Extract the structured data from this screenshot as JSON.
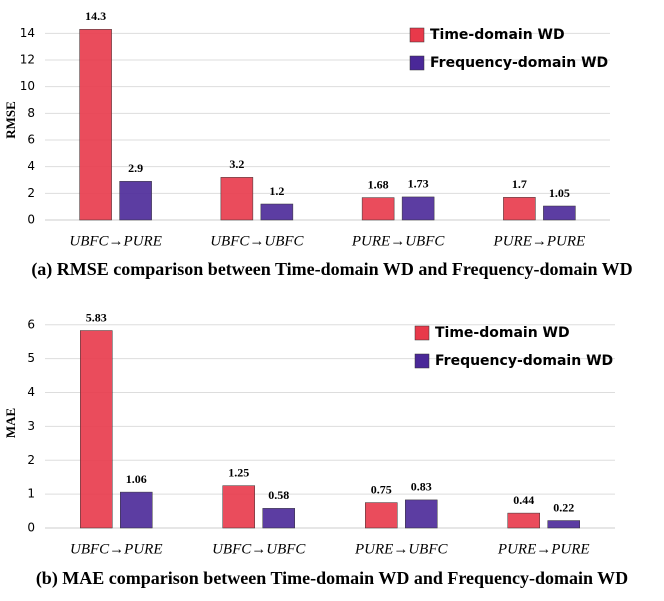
{
  "chart_data": [
    {
      "type": "bar",
      "title": "(a) RMSE comparison between Time-domain WD and Frequency-domain WD",
      "ylabel": "RMSE",
      "categories": [
        "UBFC→PURE",
        "UBFC→UBFC",
        "PURE→UBFC",
        "PURE→PURE"
      ],
      "series": [
        {
          "name": "Time-domain WD",
          "color": "#e8394a",
          "values": [
            14.3,
            3.2,
            1.68,
            1.7
          ]
        },
        {
          "name": "Frequency-domain WD",
          "color": "#4a2898",
          "values": [
            2.9,
            1.2,
            1.73,
            1.05
          ]
        }
      ],
      "ylim": [
        0,
        15
      ],
      "yticks": [
        0,
        2,
        4,
        6,
        8,
        10,
        12,
        14
      ],
      "grid": true,
      "legend": "upper right"
    },
    {
      "type": "bar",
      "title": "(b) MAE comparison between Time-domain WD and Frequency-domain WD",
      "ylabel": "MAE",
      "categories": [
        "UBFC→PURE",
        "UBFC→UBFC",
        "PURE→UBFC",
        "PURE→PURE"
      ],
      "series": [
        {
          "name": "Time-domain WD",
          "color": "#e8394a",
          "values": [
            5.83,
            1.25,
            0.75,
            0.44
          ]
        },
        {
          "name": "Frequency-domain WD",
          "color": "#4a2898",
          "values": [
            1.06,
            0.58,
            0.83,
            0.22
          ]
        }
      ],
      "ylim": [
        0,
        6.2
      ],
      "yticks": [
        0,
        1,
        2,
        3,
        4,
        5,
        6
      ],
      "grid": true,
      "legend": "upper right"
    }
  ]
}
